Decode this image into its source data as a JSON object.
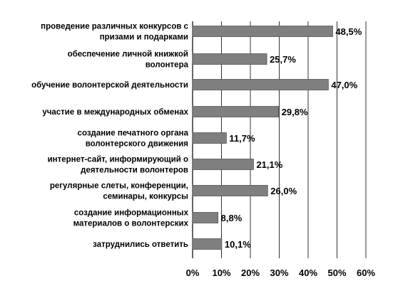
{
  "chart_data": {
    "type": "bar",
    "orientation": "horizontal",
    "title": "",
    "xlabel": "",
    "ylabel": "",
    "xlim": [
      0,
      60
    ],
    "grid": true,
    "legend": "none",
    "bar_color": "#7f7f7f",
    "bar_edge_color": "#555555",
    "categories": [
      [
        "проведение различных конкурсов с",
        "призами и подарками"
      ],
      [
        "обеспечение личной книжкой",
        "волонтера"
      ],
      [
        "обучение волонтерской деятельности"
      ],
      [
        "участие в международных обменах"
      ],
      [
        "создание печатного органа",
        "волонтерского движения"
      ],
      [
        "интернет-сайт, информирующий о",
        "деятельности волонтеров"
      ],
      [
        "регулярные слеты, конференции,",
        "семинары, конкурсы"
      ],
      [
        "создание информационных",
        "материалов о волонтерских"
      ],
      [
        "затруднились ответить"
      ]
    ],
    "values": [
      48.5,
      25.7,
      47.0,
      29.8,
      11.7,
      21.1,
      26.0,
      8.8,
      10.1
    ],
    "value_labels": [
      "48,5%",
      "25,7%",
      "47,0%",
      "29,8%",
      "11,7%",
      "21,1%",
      "26,0%",
      "8,8%",
      "10,1%"
    ],
    "x_ticks": [
      0,
      10,
      20,
      30,
      40,
      50,
      60
    ],
    "x_tick_labels": [
      "0%",
      "10%",
      "20%",
      "30%",
      "40%",
      "50%",
      "60%"
    ]
  }
}
